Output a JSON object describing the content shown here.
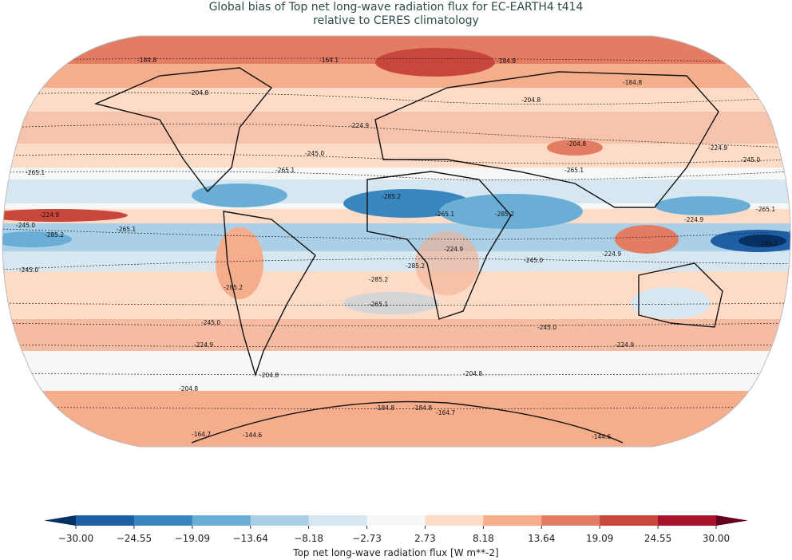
{
  "title": {
    "line1": "Global bias of Top net long-wave radiation flux for EC-EARTH4 t414",
    "line2": "relative to CERES climatology"
  },
  "colorbar": {
    "label": "Top net long-wave radiation flux [W m**-2]",
    "ticks": [
      "−30.00",
      "−24.55",
      "−19.09",
      "−13.64",
      "−8.18",
      "−2.73",
      "2.73",
      "8.18",
      "13.64",
      "19.09",
      "24.55",
      "30.00"
    ],
    "colors": [
      "#1f5fa6",
      "#3a87c0",
      "#6aaed6",
      "#a9d0e6",
      "#d6e7f1",
      "#f7f7f7",
      "#fddbc7",
      "#f5ad8c",
      "#e27c62",
      "#c9463d",
      "#a51429"
    ],
    "extend_low_color": "#053061",
    "extend_high_color": "#67001f",
    "range": [
      -30,
      30
    ]
  },
  "map": {
    "projection": "Robinson",
    "contour_labels": [
      "-184.8",
      "-164.1",
      "-184.8",
      "-184.8",
      "-204.8",
      "-204.8",
      "-224.9",
      "-224.9",
      "-204.8",
      "-245.0",
      "-245.0",
      "-265.1",
      "-265.1",
      "-265.1",
      "-285.2",
      "-265.1",
      "-285.2",
      "-224.9",
      "-265.1",
      "-224.9",
      "-245.0",
      "-265.1",
      "-285.2",
      "-285.2",
      "-224.9",
      "-245.0",
      "-224.9",
      "-245.0",
      "-285.2",
      "-285.2",
      "-285.2",
      "-265.1",
      "-245.0",
      "-245.0",
      "-224.9",
      "-224.9",
      "-204.8",
      "-204.8",
      "-204.8",
      "-184.8",
      "-184.8",
      "-164.7",
      "-164.7",
      "-144.6",
      "-144.6"
    ]
  }
}
